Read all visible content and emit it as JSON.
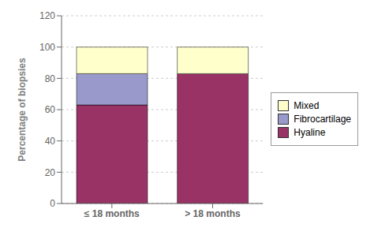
{
  "chart_data": {
    "type": "bar",
    "stacked": true,
    "categories": [
      "≤ 18 months",
      "> 18 months"
    ],
    "series": [
      {
        "name": "Hyaline",
        "color": "#993366",
        "values": [
          63,
          83
        ]
      },
      {
        "name": "Fibrocartilage",
        "color": "#9999cc",
        "values": [
          20,
          0
        ]
      },
      {
        "name": "Mixed",
        "color": "#ffffcc",
        "values": [
          17,
          17
        ]
      }
    ],
    "ylabel": "Percentage of biopsies",
    "ylim": [
      0,
      120
    ],
    "yticks": [
      0,
      20,
      40,
      60,
      80,
      100,
      120
    ],
    "grid": true,
    "legend": "right"
  }
}
